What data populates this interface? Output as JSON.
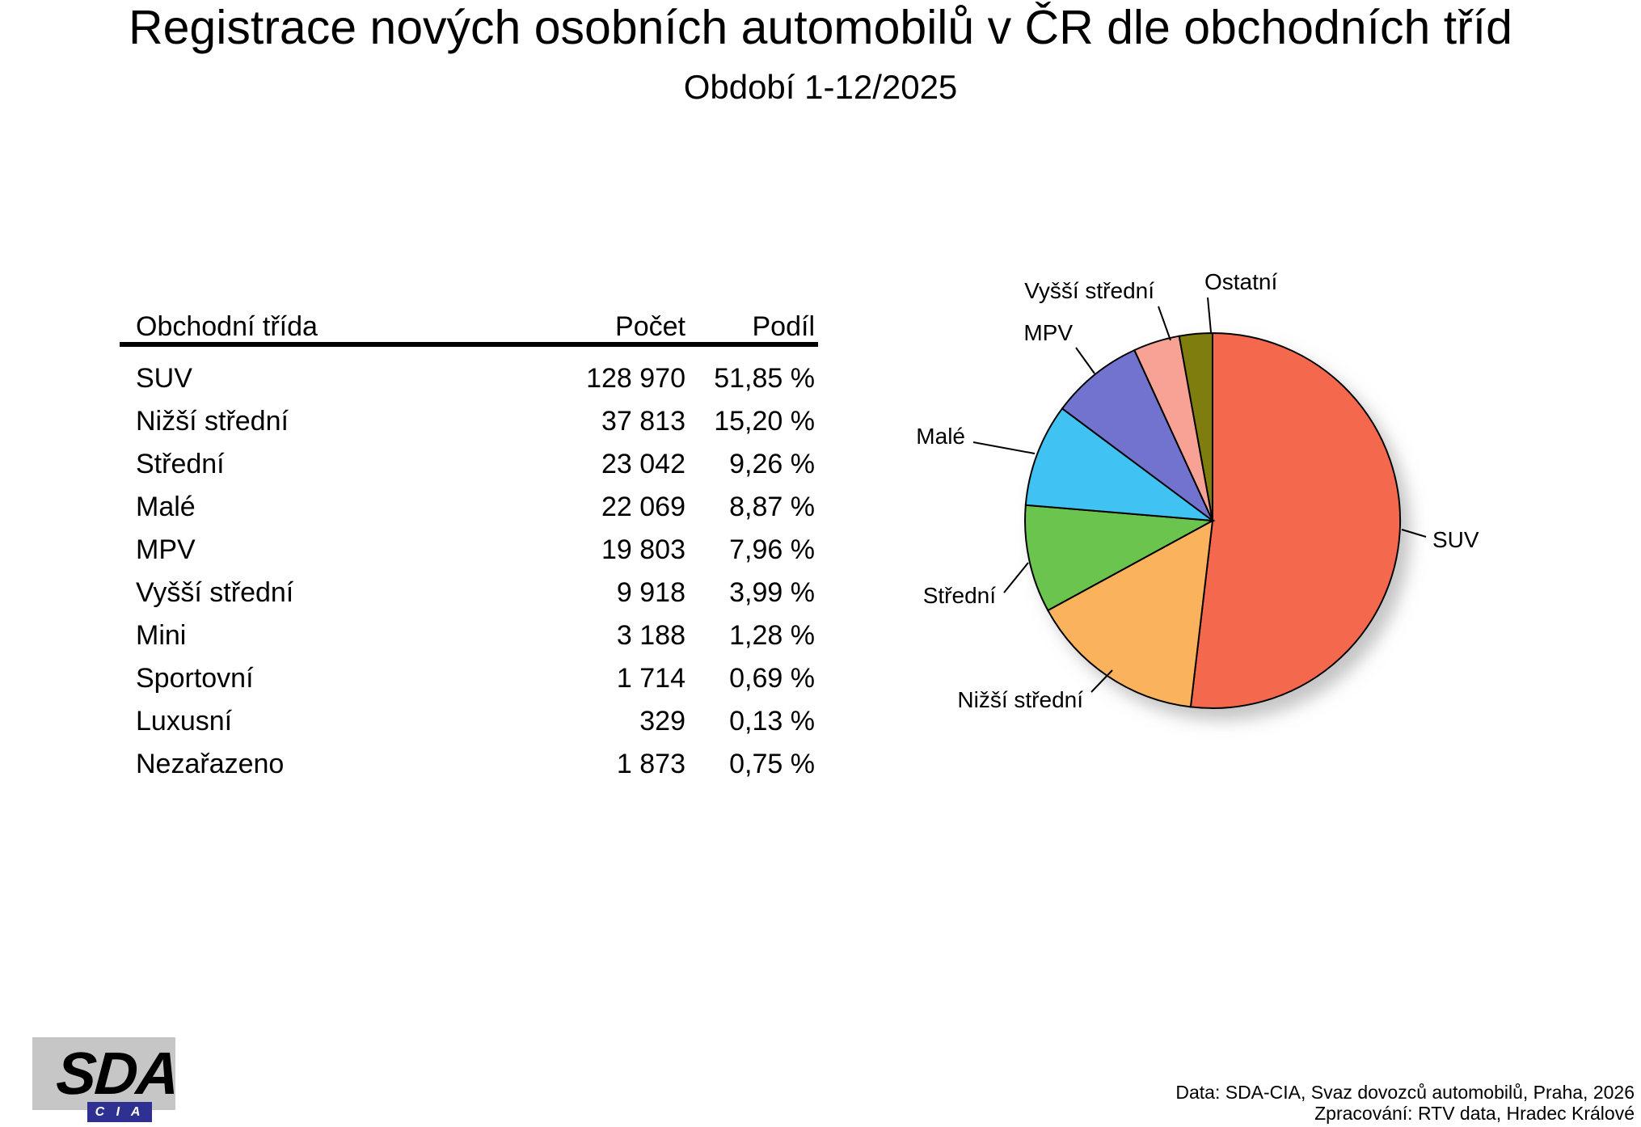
{
  "title": "Registrace nových osobních automobilů v ČR dle obchodních tříd",
  "subtitle": "Období 1-12/2025",
  "table": {
    "headers": {
      "class": "Obchodní třída",
      "count": "Počet",
      "share": "Podíl"
    },
    "rows": [
      {
        "class": "SUV",
        "count": "128 970",
        "share": "51,85 %"
      },
      {
        "class": "Nižší střední",
        "count": "37 813",
        "share": "15,20 %"
      },
      {
        "class": "Střední",
        "count": "23 042",
        "share": "9,26 %"
      },
      {
        "class": "Malé",
        "count": "22 069",
        "share": "8,87 %"
      },
      {
        "class": "MPV",
        "count": "19 803",
        "share": "7,96 %"
      },
      {
        "class": "Vyšší střední",
        "count": "9 918",
        "share": "3,99 %"
      },
      {
        "class": "Mini",
        "count": "3 188",
        "share": "1,28 %"
      },
      {
        "class": "Sportovní",
        "count": "1 714",
        "share": "0,69 %"
      },
      {
        "class": "Luxusní",
        "count": "329",
        "share": "0,13 %"
      },
      {
        "class": "Nezařazeno",
        "count": "1 873",
        "share": "0,75 %"
      }
    ]
  },
  "chart_data": {
    "type": "pie",
    "title": "Registrace nových osobních automobilů v ČR dle obchodních tříd, období 1-12/2025",
    "legend_position": "outside-labels-with-leader-lines",
    "start_angle_deg": 0,
    "direction": "clockwise",
    "slices": [
      {
        "label": "SUV",
        "value": 128970,
        "pct": 51.85,
        "color": "#F4694E"
      },
      {
        "label": "Nižší střední",
        "value": 37813,
        "pct": 15.2,
        "color": "#FBB25C"
      },
      {
        "label": "Střední",
        "value": 23042,
        "pct": 9.26,
        "color": "#6AC44D"
      },
      {
        "label": "Malé",
        "value": 22069,
        "pct": 8.87,
        "color": "#41C3F2"
      },
      {
        "label": "MPV",
        "value": 19803,
        "pct": 7.96,
        "color": "#7173CE"
      },
      {
        "label": "Vyšší střední",
        "value": 9918,
        "pct": 3.99,
        "color": "#F8A195"
      },
      {
        "label": "Ostatní",
        "value": 7104,
        "pct": 2.85,
        "color": "#7F7D11"
      }
    ]
  },
  "footer": {
    "line1": "Data: SDA-CIA, Svaz dovozců automobilů, Praha, 2026",
    "line2": "Zpracování: RTV data, Hradec Králové"
  },
  "logo": {
    "main": "SDA",
    "sub": "C I A"
  }
}
